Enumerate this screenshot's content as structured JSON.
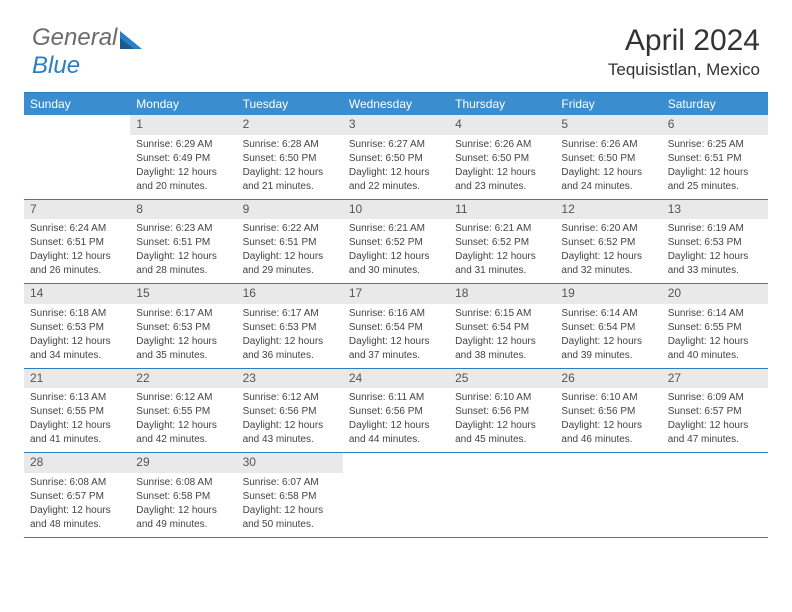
{
  "logo": {
    "general": "General",
    "blue": "Blue"
  },
  "title": "April 2024",
  "location": "Tequisistlan, Mexico",
  "colors": {
    "header_bg": "#3a8dcf",
    "border": "#2a7ec4",
    "daynum_bg": "#e9e9e9",
    "logo_gray": "#6b6b6b",
    "logo_blue": "#2a7ec4"
  },
  "weekdays": [
    "Sunday",
    "Monday",
    "Tuesday",
    "Wednesday",
    "Thursday",
    "Friday",
    "Saturday"
  ],
  "weeks": [
    [
      null,
      {
        "n": "1",
        "sr": "Sunrise: 6:29 AM",
        "ss": "Sunset: 6:49 PM",
        "d1": "Daylight: 12 hours",
        "d2": "and 20 minutes."
      },
      {
        "n": "2",
        "sr": "Sunrise: 6:28 AM",
        "ss": "Sunset: 6:50 PM",
        "d1": "Daylight: 12 hours",
        "d2": "and 21 minutes."
      },
      {
        "n": "3",
        "sr": "Sunrise: 6:27 AM",
        "ss": "Sunset: 6:50 PM",
        "d1": "Daylight: 12 hours",
        "d2": "and 22 minutes."
      },
      {
        "n": "4",
        "sr": "Sunrise: 6:26 AM",
        "ss": "Sunset: 6:50 PM",
        "d1": "Daylight: 12 hours",
        "d2": "and 23 minutes."
      },
      {
        "n": "5",
        "sr": "Sunrise: 6:26 AM",
        "ss": "Sunset: 6:50 PM",
        "d1": "Daylight: 12 hours",
        "d2": "and 24 minutes."
      },
      {
        "n": "6",
        "sr": "Sunrise: 6:25 AM",
        "ss": "Sunset: 6:51 PM",
        "d1": "Daylight: 12 hours",
        "d2": "and 25 minutes."
      }
    ],
    [
      {
        "n": "7",
        "sr": "Sunrise: 6:24 AM",
        "ss": "Sunset: 6:51 PM",
        "d1": "Daylight: 12 hours",
        "d2": "and 26 minutes."
      },
      {
        "n": "8",
        "sr": "Sunrise: 6:23 AM",
        "ss": "Sunset: 6:51 PM",
        "d1": "Daylight: 12 hours",
        "d2": "and 28 minutes."
      },
      {
        "n": "9",
        "sr": "Sunrise: 6:22 AM",
        "ss": "Sunset: 6:51 PM",
        "d1": "Daylight: 12 hours",
        "d2": "and 29 minutes."
      },
      {
        "n": "10",
        "sr": "Sunrise: 6:21 AM",
        "ss": "Sunset: 6:52 PM",
        "d1": "Daylight: 12 hours",
        "d2": "and 30 minutes."
      },
      {
        "n": "11",
        "sr": "Sunrise: 6:21 AM",
        "ss": "Sunset: 6:52 PM",
        "d1": "Daylight: 12 hours",
        "d2": "and 31 minutes."
      },
      {
        "n": "12",
        "sr": "Sunrise: 6:20 AM",
        "ss": "Sunset: 6:52 PM",
        "d1": "Daylight: 12 hours",
        "d2": "and 32 minutes."
      },
      {
        "n": "13",
        "sr": "Sunrise: 6:19 AM",
        "ss": "Sunset: 6:53 PM",
        "d1": "Daylight: 12 hours",
        "d2": "and 33 minutes."
      }
    ],
    [
      {
        "n": "14",
        "sr": "Sunrise: 6:18 AM",
        "ss": "Sunset: 6:53 PM",
        "d1": "Daylight: 12 hours",
        "d2": "and 34 minutes."
      },
      {
        "n": "15",
        "sr": "Sunrise: 6:17 AM",
        "ss": "Sunset: 6:53 PM",
        "d1": "Daylight: 12 hours",
        "d2": "and 35 minutes."
      },
      {
        "n": "16",
        "sr": "Sunrise: 6:17 AM",
        "ss": "Sunset: 6:53 PM",
        "d1": "Daylight: 12 hours",
        "d2": "and 36 minutes."
      },
      {
        "n": "17",
        "sr": "Sunrise: 6:16 AM",
        "ss": "Sunset: 6:54 PM",
        "d1": "Daylight: 12 hours",
        "d2": "and 37 minutes."
      },
      {
        "n": "18",
        "sr": "Sunrise: 6:15 AM",
        "ss": "Sunset: 6:54 PM",
        "d1": "Daylight: 12 hours",
        "d2": "and 38 minutes."
      },
      {
        "n": "19",
        "sr": "Sunrise: 6:14 AM",
        "ss": "Sunset: 6:54 PM",
        "d1": "Daylight: 12 hours",
        "d2": "and 39 minutes."
      },
      {
        "n": "20",
        "sr": "Sunrise: 6:14 AM",
        "ss": "Sunset: 6:55 PM",
        "d1": "Daylight: 12 hours",
        "d2": "and 40 minutes."
      }
    ],
    [
      {
        "n": "21",
        "sr": "Sunrise: 6:13 AM",
        "ss": "Sunset: 6:55 PM",
        "d1": "Daylight: 12 hours",
        "d2": "and 41 minutes."
      },
      {
        "n": "22",
        "sr": "Sunrise: 6:12 AM",
        "ss": "Sunset: 6:55 PM",
        "d1": "Daylight: 12 hours",
        "d2": "and 42 minutes."
      },
      {
        "n": "23",
        "sr": "Sunrise: 6:12 AM",
        "ss": "Sunset: 6:56 PM",
        "d1": "Daylight: 12 hours",
        "d2": "and 43 minutes."
      },
      {
        "n": "24",
        "sr": "Sunrise: 6:11 AM",
        "ss": "Sunset: 6:56 PM",
        "d1": "Daylight: 12 hours",
        "d2": "and 44 minutes."
      },
      {
        "n": "25",
        "sr": "Sunrise: 6:10 AM",
        "ss": "Sunset: 6:56 PM",
        "d1": "Daylight: 12 hours",
        "d2": "and 45 minutes."
      },
      {
        "n": "26",
        "sr": "Sunrise: 6:10 AM",
        "ss": "Sunset: 6:56 PM",
        "d1": "Daylight: 12 hours",
        "d2": "and 46 minutes."
      },
      {
        "n": "27",
        "sr": "Sunrise: 6:09 AM",
        "ss": "Sunset: 6:57 PM",
        "d1": "Daylight: 12 hours",
        "d2": "and 47 minutes."
      }
    ],
    [
      {
        "n": "28",
        "sr": "Sunrise: 6:08 AM",
        "ss": "Sunset: 6:57 PM",
        "d1": "Daylight: 12 hours",
        "d2": "and 48 minutes."
      },
      {
        "n": "29",
        "sr": "Sunrise: 6:08 AM",
        "ss": "Sunset: 6:58 PM",
        "d1": "Daylight: 12 hours",
        "d2": "and 49 minutes."
      },
      {
        "n": "30",
        "sr": "Sunrise: 6:07 AM",
        "ss": "Sunset: 6:58 PM",
        "d1": "Daylight: 12 hours",
        "d2": "and 50 minutes."
      },
      null,
      null,
      null,
      null
    ]
  ]
}
